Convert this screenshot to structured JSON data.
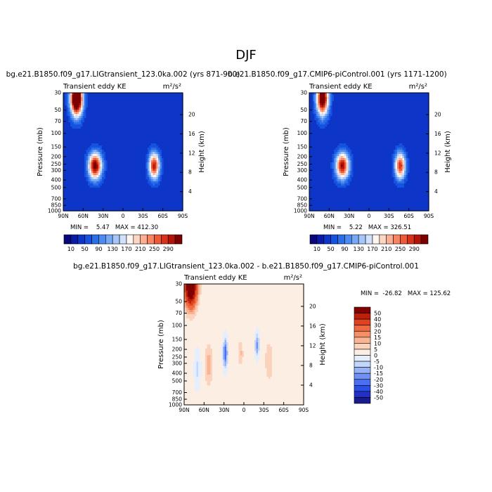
{
  "figure": {
    "title": "DJF"
  },
  "colors": {
    "abs_scale": [
      "#08087a",
      "#0a1ba8",
      "#0d36c8",
      "#1552e0",
      "#2a6ee8",
      "#4d8bf0",
      "#76a9f5",
      "#a4c6fa",
      "#cfe1fd",
      "#fff5f0",
      "#fdd5c3",
      "#fbae92",
      "#f88462",
      "#ec5a36",
      "#d9321a",
      "#b41408",
      "#7d0000"
    ],
    "diff_scale": [
      "#1a1a8c",
      "#2230c8",
      "#2a4fe6",
      "#4a6ff0",
      "#7090f5",
      "#98b2f8",
      "#c3d6fb",
      "#e4eefd",
      "#fdeee4",
      "#fbd3bd",
      "#f8b494",
      "#f58f68",
      "#ef6a3f",
      "#e0431f",
      "#bd1f08",
      "#820000"
    ]
  },
  "chart_data": [
    {
      "type": "heatmap",
      "title": "bg.e21.B1850.f09_g17.LIGtransient_123.0ka.002 (yrs 871-900)",
      "subtitle_left": "Transient eddy KE",
      "units": "m²/s²",
      "ylabel": "Pressure (mb)",
      "ylabel_right": "Height (km)",
      "x_ticks": [
        "90N",
        "60N",
        "30N",
        "0",
        "30S",
        "60S",
        "90S"
      ],
      "y_ticks": [
        "30",
        "50",
        "70",
        "100",
        "150",
        "200",
        "250",
        "300",
        "400",
        "500",
        "700",
        "850",
        "1000"
      ],
      "y_ticks_right": [
        "20",
        "16",
        "12",
        "8",
        "4"
      ],
      "min_text": "MIN =    5.47   MAX = 412.30",
      "colorbar_labels": [
        "10",
        "50",
        "90",
        "130",
        "170",
        "210",
        "250",
        "290"
      ],
      "fields": [
        {
          "lat": 70,
          "logp": 1.55,
          "amp": 420,
          "slat": 9,
          "slogp": 0.22
        },
        {
          "lat": 42,
          "logp": 2.42,
          "amp": 300,
          "slat": 10,
          "slogp": 0.17
        },
        {
          "lat": -47,
          "logp": 2.42,
          "amp": 265,
          "slat": 8,
          "slogp": 0.17
        }
      ],
      "base": 45
    },
    {
      "type": "heatmap",
      "title": "b.e21.B1850.f09_g17.CMIP6-piControl.001 (yrs 1171-1200)",
      "subtitle_left": "Transient eddy KE",
      "units": "m²/s²",
      "ylabel": "Pressure (mb)",
      "ylabel_right": "Height (km)",
      "x_ticks": [
        "90N",
        "60N",
        "30N",
        "0",
        "30S",
        "60S",
        "90S"
      ],
      "y_ticks": [
        "30",
        "50",
        "70",
        "100",
        "150",
        "200",
        "250",
        "300",
        "400",
        "500",
        "700",
        "850",
        "1000"
      ],
      "y_ticks_right": [
        "20",
        "16",
        "12",
        "8",
        "4"
      ],
      "min_text": "MIN =    5.22   MAX = 326.51",
      "colorbar_labels": [
        "10",
        "50",
        "90",
        "130",
        "170",
        "210",
        "250",
        "290"
      ],
      "fields": [
        {
          "lat": 70,
          "logp": 1.55,
          "amp": 330,
          "slat": 9,
          "slogp": 0.22
        },
        {
          "lat": 40,
          "logp": 2.42,
          "amp": 280,
          "slat": 10,
          "slogp": 0.17
        },
        {
          "lat": -47,
          "logp": 2.42,
          "amp": 250,
          "slat": 8,
          "slogp": 0.17
        }
      ],
      "base": 45
    },
    {
      "type": "heatmap",
      "title": "bg.e21.B1850.f09_g17.LIGtransient_123.0ka.002 - b.e21.B1850.f09_g17.CMIP6-piControl.001",
      "subtitle_left": "Transient eddy KE",
      "units": "m²/s²",
      "ylabel": "Pressure (mb)",
      "ylabel_right": "Height (km)",
      "x_ticks": [
        "90N",
        "60N",
        "30N",
        "0",
        "30S",
        "60S",
        "90S"
      ],
      "y_ticks": [
        "30",
        "50",
        "70",
        "100",
        "150",
        "200",
        "250",
        "300",
        "400",
        "500",
        "700",
        "850",
        "1000"
      ],
      "y_ticks_right": [
        "20",
        "16",
        "12",
        "8",
        "4"
      ],
      "min_text": "MIN =  -26.82   MAX = 125.62",
      "colorbar_labels": [
        "50",
        "40",
        "30",
        "20",
        "15",
        "10",
        "5",
        "0",
        "-5",
        "-10",
        "-15",
        "-20",
        "-30",
        "-40",
        "-50"
      ],
      "fields": [
        {
          "lat": 80,
          "logp": 1.5,
          "amp": 80,
          "slat": 9,
          "slogp": 0.25
        },
        {
          "lat": 28,
          "logp": 2.35,
          "amp": -28,
          "slat": 3,
          "slogp": 0.16
        },
        {
          "lat": 53,
          "logp": 2.5,
          "amp": 12,
          "slat": 6,
          "slogp": 0.25
        },
        {
          "lat": 5,
          "logp": 2.35,
          "amp": 10,
          "slat": 4,
          "slogp": 0.15
        },
        {
          "lat": -20,
          "logp": 2.25,
          "amp": -18,
          "slat": 3,
          "slogp": 0.13
        },
        {
          "lat": -38,
          "logp": 2.45,
          "amp": 9,
          "slat": 6,
          "slogp": 0.25
        },
        {
          "lat": 70,
          "logp": 2.55,
          "amp": -8,
          "slat": 4,
          "slogp": 0.2
        }
      ],
      "base": 1
    }
  ]
}
